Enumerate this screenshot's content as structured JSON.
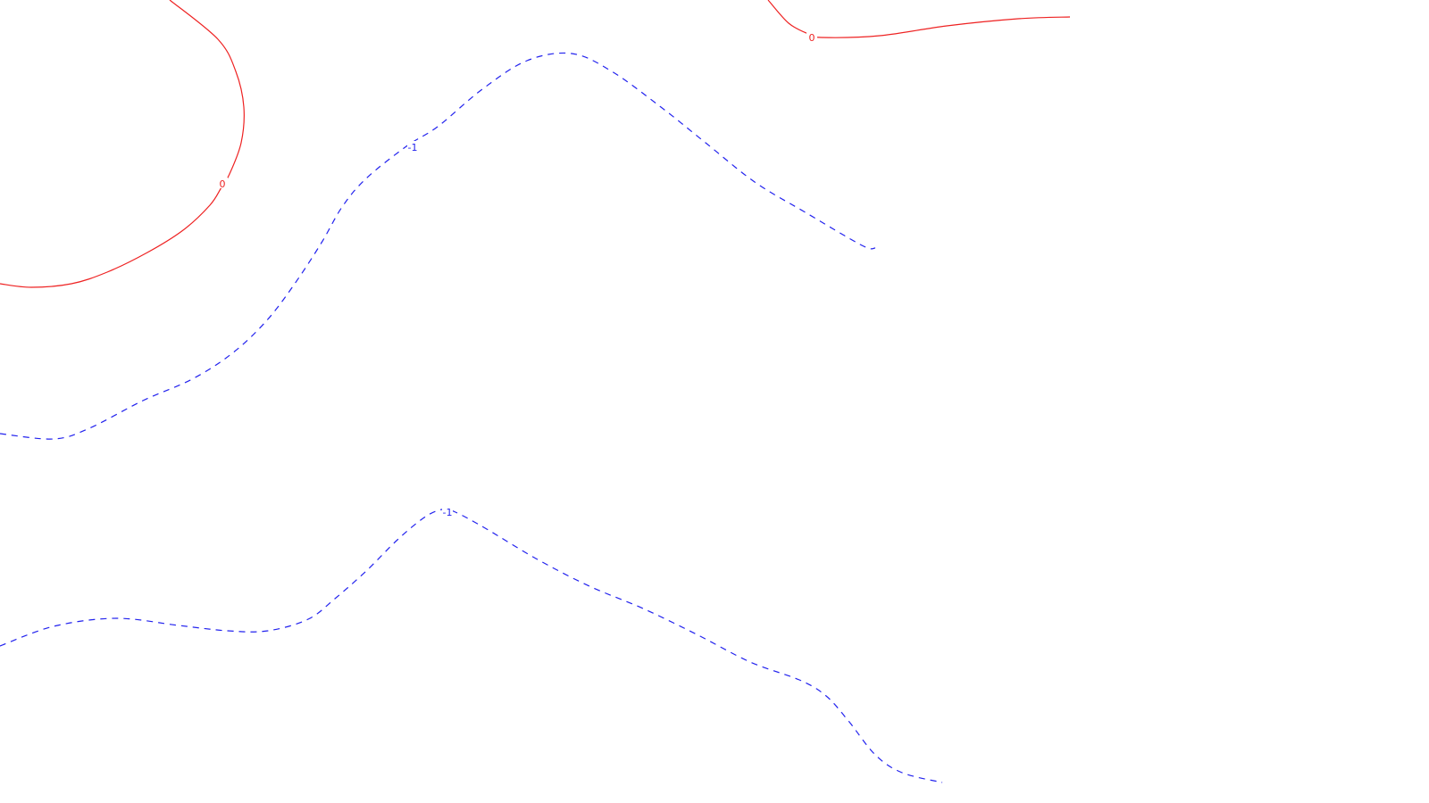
{
  "chart_data": {
    "type": "contour",
    "grid": false,
    "colors": {
      "level_0": "#ee2222",
      "level_neg1": "#2222ee"
    },
    "contours": [
      {
        "level": 0,
        "label": "0",
        "style": "solid",
        "color": "#ee2222",
        "points": [
          [
            190,
            0
          ],
          [
            244,
            44
          ],
          [
            264,
            80
          ],
          [
            273,
            120
          ],
          [
            270,
            160
          ],
          [
            257,
            195
          ],
          [
            248,
            210
          ],
          [
            235,
            230
          ],
          [
            205,
            258
          ],
          [
            165,
            283
          ],
          [
            120,
            305
          ],
          [
            80,
            318
          ],
          [
            35,
            322
          ],
          [
            0,
            318
          ]
        ],
        "label_at": [
          249,
          206
        ]
      },
      {
        "level": 0,
        "label": "0",
        "style": "solid",
        "color": "#ee2222",
        "points": [
          [
            860,
            0
          ],
          [
            883,
            26
          ],
          [
            905,
            38
          ],
          [
            920,
            42
          ],
          [
            985,
            40
          ],
          [
            1060,
            29
          ],
          [
            1140,
            21
          ],
          [
            1198,
            19
          ]
        ],
        "label_at": [
          909,
          42
        ]
      },
      {
        "level": -1,
        "label": "-1",
        "style": "dashed",
        "color": "#2222ee",
        "points": [
          [
            0,
            486
          ],
          [
            60,
            492
          ],
          [
            100,
            480
          ],
          [
            160,
            449
          ],
          [
            215,
            425
          ],
          [
            260,
            396
          ],
          [
            298,
            360
          ],
          [
            330,
            318
          ],
          [
            360,
            272
          ],
          [
            383,
            232
          ],
          [
            410,
            200
          ],
          [
            455,
            164
          ],
          [
            490,
            142
          ],
          [
            540,
            100
          ],
          [
            590,
            68
          ],
          [
            640,
            60
          ],
          [
            685,
            80
          ],
          [
            740,
            120
          ],
          [
            790,
            160
          ],
          [
            845,
            204
          ],
          [
            900,
            237
          ],
          [
            965,
            275
          ],
          [
            980,
            278
          ]
        ],
        "label_at": [
          462,
          165
        ]
      },
      {
        "level": -1,
        "label": "-1",
        "style": "dashed",
        "color": "#2222ee",
        "points": [
          [
            0,
            724
          ],
          [
            60,
            702
          ],
          [
            130,
            693
          ],
          [
            200,
            701
          ],
          [
            255,
            707
          ],
          [
            300,
            707
          ],
          [
            345,
            694
          ],
          [
            375,
            671
          ],
          [
            410,
            640
          ],
          [
            445,
            605
          ],
          [
            475,
            580
          ],
          [
            495,
            571
          ],
          [
            510,
            574
          ],
          [
            545,
            593
          ],
          [
            600,
            626
          ],
          [
            660,
            657
          ],
          [
            720,
            682
          ],
          [
            780,
            711
          ],
          [
            840,
            742
          ],
          [
            895,
            762
          ],
          [
            925,
            780
          ],
          [
            950,
            808
          ],
          [
            980,
            846
          ],
          [
            1010,
            866
          ],
          [
            1055,
            877
          ]
        ],
        "label_at": [
          501,
          574
        ]
      }
    ]
  }
}
